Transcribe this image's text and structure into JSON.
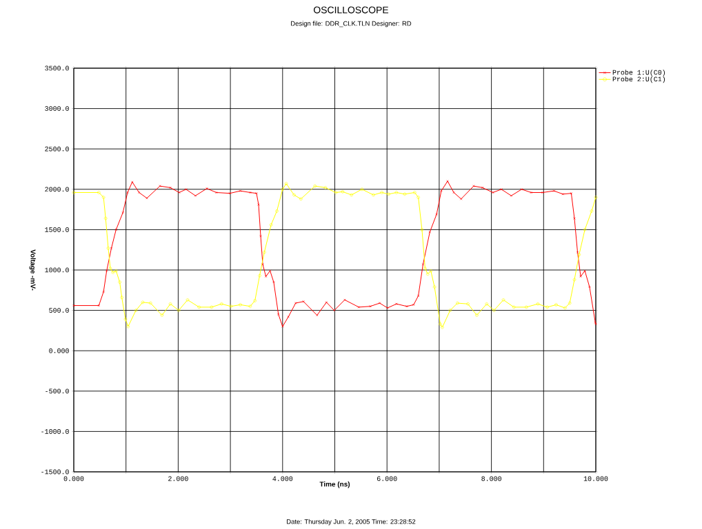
{
  "chart_data": {
    "type": "line",
    "title": "OSCILLOSCOPE",
    "subtitle": "Design file: DDR_CLK.TLN          Designer: RD",
    "xlabel": "Time  (ns)",
    "ylabel": "Voltage -mV-",
    "annotations": [
      "Date: Thursday Jun. 2, 2005   Time: 23:28:52"
    ],
    "xlim": [
      0,
      10
    ],
    "ylim": [
      -1500,
      3500
    ],
    "xticks": [
      {
        "value": 0,
        "label": "0.000"
      },
      {
        "value": 1,
        "label": null
      },
      {
        "value": 2,
        "label": "2.000"
      },
      {
        "value": 3,
        "label": null
      },
      {
        "value": 4,
        "label": "4.000"
      },
      {
        "value": 5,
        "label": null
      },
      {
        "value": 6,
        "label": "6.000"
      },
      {
        "value": 7,
        "label": null
      },
      {
        "value": 8,
        "label": "8.000"
      },
      {
        "value": 9,
        "label": null
      },
      {
        "value": 10,
        "label": "10.000"
      }
    ],
    "yticks": [
      {
        "value": -1500,
        "label": "-1500.0"
      },
      {
        "value": -1000,
        "label": "-1000.0"
      },
      {
        "value": -500,
        "label": "-500.0"
      },
      {
        "value": 0,
        "label": "0.000"
      },
      {
        "value": 500,
        "label": "500.0"
      },
      {
        "value": 1000,
        "label": "1000.0"
      },
      {
        "value": 1500,
        "label": "1500.0"
      },
      {
        "value": 2000,
        "label": "2000.0"
      },
      {
        "value": 2500,
        "label": "2500.0"
      },
      {
        "value": 3000,
        "label": "3000.0"
      },
      {
        "value": 3500,
        "label": "3500.0"
      }
    ],
    "grid": true,
    "legend": "top right",
    "series": [
      {
        "name": "Probe 1:U(C0)",
        "color": "#ff0000",
        "marker": "cross",
        "x": [
          0,
          0.48,
          0.57,
          0.63,
          0.72,
          0.81,
          0.94,
          1.03,
          1.12,
          1.25,
          1.4,
          1.65,
          1.85,
          2.02,
          2.15,
          2.33,
          2.55,
          2.73,
          2.99,
          3.19,
          3.38,
          3.5,
          3.54,
          3.58,
          3.62,
          3.68,
          3.76,
          3.83,
          3.92,
          4.0,
          4.11,
          4.25,
          4.4,
          4.66,
          4.84,
          4.99,
          5.19,
          5.46,
          5.68,
          5.86,
          6.01,
          6.18,
          6.38,
          6.51,
          6.6,
          6.69,
          6.82,
          6.95,
          7.04,
          7.16,
          7.28,
          7.42,
          7.66,
          7.83,
          8.03,
          8.19,
          8.38,
          8.58,
          8.76,
          8.98,
          9.2,
          9.37,
          9.53,
          9.59,
          9.65,
          9.71,
          9.79,
          9.88,
          9.99,
          10
        ],
        "values": [
          560,
          560,
          730,
          990,
          1270,
          1500,
          1710,
          1960,
          2090,
          1960,
          1890,
          2040,
          2020,
          1960,
          2000,
          1920,
          2010,
          1960,
          1950,
          1980,
          1960,
          1950,
          1810,
          1420,
          1070,
          920,
          990,
          850,
          450,
          300,
          420,
          590,
          610,
          440,
          600,
          500,
          630,
          540,
          550,
          590,
          530,
          580,
          550,
          570,
          680,
          1070,
          1470,
          1690,
          1980,
          2100,
          1960,
          1880,
          2040,
          2020,
          1960,
          2000,
          1920,
          2000,
          1960,
          1960,
          1980,
          1940,
          1950,
          1640,
          1220,
          920,
          990,
          790,
          350,
          330
        ]
      },
      {
        "name": "Probe 2:U(C1)",
        "color": "#ffff00",
        "marker": "circle",
        "x": [
          0,
          0.48,
          0.57,
          0.61,
          0.66,
          0.7,
          0.75,
          0.81,
          0.88,
          0.92,
          0.99,
          1.04,
          1.19,
          1.32,
          1.47,
          1.69,
          1.85,
          2.01,
          2.18,
          2.4,
          2.64,
          2.83,
          3.01,
          3.19,
          3.38,
          3.47,
          3.56,
          3.65,
          3.78,
          3.89,
          4.0,
          4.07,
          4.22,
          4.35,
          4.62,
          4.82,
          5.02,
          5.15,
          5.32,
          5.52,
          5.74,
          5.9,
          6.03,
          6.18,
          6.34,
          6.53,
          6.6,
          6.67,
          6.73,
          6.78,
          6.84,
          6.91,
          7.02,
          7.06,
          7.21,
          7.35,
          7.55,
          7.72,
          7.91,
          8.05,
          8.23,
          8.43,
          8.67,
          8.89,
          9.07,
          9.24,
          9.41,
          9.5,
          9.59,
          9.68,
          9.79,
          9.92,
          10
        ],
        "values": [
          1960,
          1960,
          1900,
          1640,
          1270,
          1020,
          970,
          990,
          850,
          660,
          390,
          300,
          500,
          600,
          590,
          440,
          580,
          500,
          630,
          540,
          540,
          580,
          550,
          570,
          550,
          620,
          930,
          1220,
          1560,
          1730,
          2000,
          2070,
          1930,
          1880,
          2040,
          2020,
          1960,
          1970,
          1930,
          2000,
          1930,
          1960,
          1940,
          1960,
          1940,
          1960,
          1900,
          1500,
          1020,
          950,
          990,
          790,
          330,
          290,
          500,
          590,
          580,
          440,
          580,
          500,
          630,
          540,
          540,
          580,
          540,
          570,
          530,
          590,
          880,
          1190,
          1500,
          1730,
          1900
        ]
      }
    ]
  }
}
